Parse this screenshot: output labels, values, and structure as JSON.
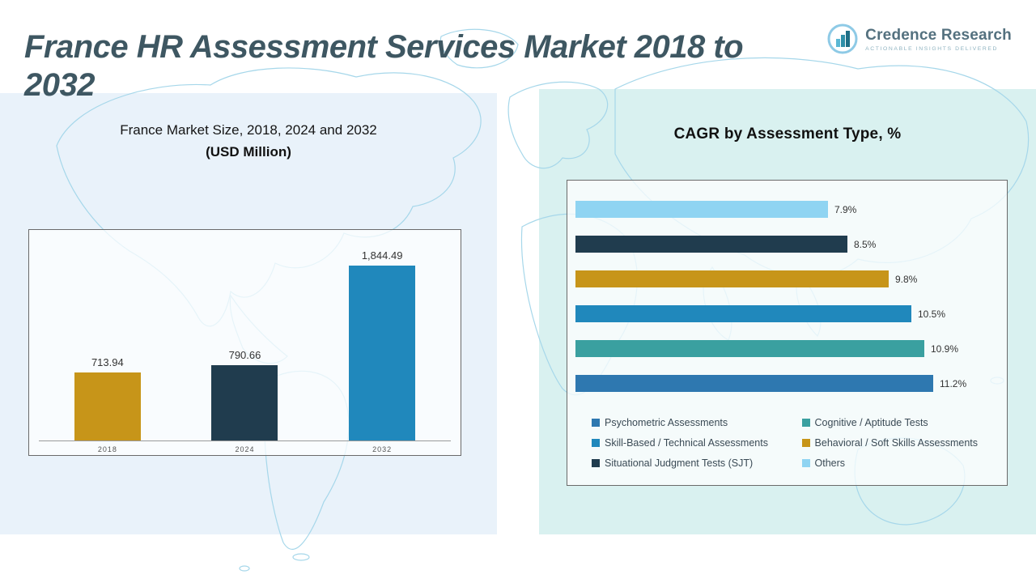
{
  "page_title": "France HR Assessment Services Market 2018 to 2032",
  "logo": {
    "name": "Credence Research",
    "tagline": "Actionable Insights Delivered",
    "icon": "bar-chart-circle-icon"
  },
  "colors": {
    "gold": "#C79519",
    "dark_navy": "#203C4E",
    "blue": "#2088BC",
    "teal": "#3AA0A0",
    "steel_blue": "#2E78B0",
    "sky_blue": "#8FD4F2",
    "panel_left_bg": "#E9F2FA",
    "panel_right_bg": "#D9F1F0",
    "title_color": "#3E5762",
    "map_line": "#A6D7EA"
  },
  "chart_data": [
    {
      "type": "bar",
      "orientation": "vertical",
      "title_line1": "France Market Size, 2018, 2024 and 2032",
      "title_line2": "(USD Million)",
      "categories": [
        "2018",
        "2024",
        "2032"
      ],
      "values": [
        713.94,
        790.66,
        1844.49
      ],
      "value_labels": [
        "713.94",
        "790.66",
        "1,844.49"
      ],
      "bar_colors": [
        "#C79519",
        "#203C4E",
        "#2088BC"
      ],
      "ylim": [
        0,
        2000
      ],
      "grid": false,
      "legend_position": "none"
    },
    {
      "type": "bar",
      "orientation": "horizontal",
      "title": "CAGR by Assessment Type, %",
      "categories": [
        "Others",
        "Situational Judgment Tests (SJT)",
        "Behavioral / Soft Skills Assessments",
        "Skill-Based / Technical Assessments",
        "Cognitive / Aptitude Tests",
        "Psychometric Assessments"
      ],
      "values": [
        7.9,
        8.5,
        9.8,
        10.5,
        10.9,
        11.2
      ],
      "value_labels": [
        "7.9%",
        "8.5%",
        "9.8%",
        "10.5%",
        "10.9%",
        "11.2%"
      ],
      "bar_colors": [
        "#8FD4F2",
        "#203C4E",
        "#C79519",
        "#2088BC",
        "#3AA0A0",
        "#2E78B0"
      ],
      "xlim": [
        0,
        12.1
      ],
      "grid": false,
      "legend_position": "bottom",
      "legend": [
        {
          "label": "Psychometric Assessments",
          "color": "#2E78B0"
        },
        {
          "label": "Cognitive / Aptitude Tests",
          "color": "#3AA0A0"
        },
        {
          "label": "Skill-Based / Technical Assessments",
          "color": "#2088BC"
        },
        {
          "label": "Behavioral / Soft Skills Assessments",
          "color": "#C79519"
        },
        {
          "label": "Situational Judgment Tests (SJT)",
          "color": "#203C4E"
        },
        {
          "label": "Others",
          "color": "#8FD4F2"
        }
      ]
    }
  ]
}
